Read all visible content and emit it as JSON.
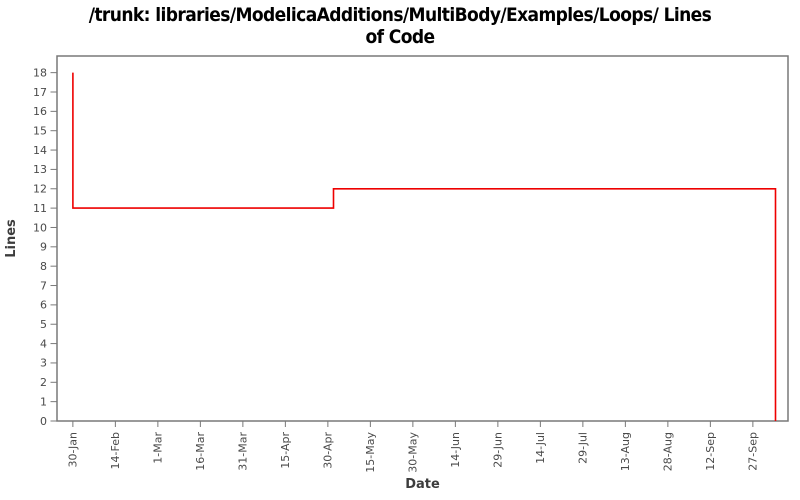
{
  "header": {
    "title_full": "/trunk: libraries/ModelicaAdditions/MultiBody/Examples/Loops/ Lines of Code",
    "title_line1": "/trunk: libraries/ModelicaAdditions/MultiBody/Examples/Loops/ Lines",
    "title_line2": "of Code"
  },
  "chart_data": {
    "type": "line",
    "step_style": true,
    "title": "/trunk: libraries/ModelicaAdditions/MultiBody/Examples/Loops/ Lines of Code",
    "xlabel": "Date",
    "ylabel": "Lines",
    "grid": false,
    "legend": "none",
    "x_tick_labels": [
      "30-Jan",
      "14-Feb",
      "1-Mar",
      "16-Mar",
      "31-Mar",
      "15-Apr",
      "30-Apr",
      "15-May",
      "30-May",
      "14-Jun",
      "29-Jun",
      "14-Jul",
      "29-Jul",
      "13-Aug",
      "28-Aug",
      "12-Sep",
      "27-Sep"
    ],
    "x_tick_spacing_days": 15,
    "xlim_days": [
      -5.6,
      252.4
    ],
    "y_ticks": [
      0,
      1,
      2,
      3,
      4,
      5,
      6,
      7,
      8,
      9,
      10,
      11,
      12,
      13,
      14,
      15,
      16,
      17,
      18
    ],
    "ylim": [
      0,
      18.86
    ],
    "series": [
      {
        "name": "Lines of Code",
        "color": "#ee0000",
        "points": [
          [
            0,
            18
          ],
          [
            0,
            11
          ],
          [
            92,
            11
          ],
          [
            92,
            12
          ],
          [
            248,
            12
          ],
          [
            248,
            0
          ]
        ]
      }
    ]
  },
  "colors": {
    "axis": "#787878",
    "tick_text": "#4a4a4a",
    "axis_label_text": "#3c3c3c",
    "title_text": "#000000",
    "background": "#ffffff"
  }
}
